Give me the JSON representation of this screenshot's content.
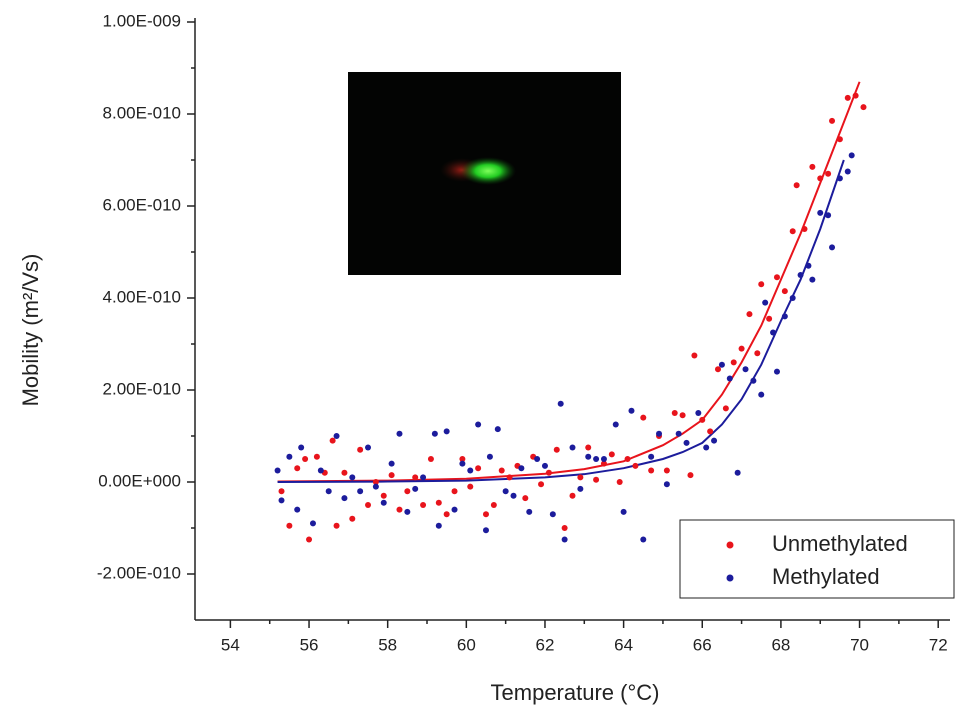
{
  "chart_data": {
    "type": "scatter",
    "xlabel": "Temperature (°C)",
    "ylabel": "Mobility (m²/Vs)",
    "xlim": [
      53.1,
      72.3
    ],
    "xticks": [
      54,
      56,
      58,
      60,
      62,
      64,
      66,
      68,
      70,
      72
    ],
    "ylim": [
      -3e-10,
      1e-09
    ],
    "yticks": [
      {
        "value": -2e-10,
        "label": "-2.00E-010"
      },
      {
        "value": 0,
        "label": "0.00E+000"
      },
      {
        "value": 2e-10,
        "label": "2.00E-010"
      },
      {
        "value": 4e-10,
        "label": "4.00E-010"
      },
      {
        "value": 6e-10,
        "label": "6.00E-010"
      },
      {
        "value": 8e-10,
        "label": "8.00E-010"
      },
      {
        "value": 1e-09,
        "label": "1.00E-009"
      }
    ],
    "legend": "lower right",
    "series": [
      {
        "name": "Unmethylated",
        "color": "#e8141c",
        "x": [
          55.3,
          55.5,
          55.7,
          55.9,
          56.0,
          56.2,
          56.4,
          56.6,
          56.7,
          56.9,
          57.1,
          57.3,
          57.5,
          57.7,
          57.9,
          58.1,
          58.3,
          58.5,
          58.7,
          58.9,
          59.1,
          59.3,
          59.5,
          59.7,
          59.9,
          60.1,
          60.3,
          60.5,
          60.7,
          60.9,
          61.1,
          61.3,
          61.5,
          61.7,
          61.9,
          62.1,
          62.3,
          62.5,
          62.7,
          62.9,
          63.1,
          63.3,
          63.5,
          63.7,
          63.9,
          64.1,
          64.3,
          64.5,
          64.7,
          64.9,
          65.1,
          65.3,
          65.5,
          65.7,
          65.8,
          66.0,
          66.2,
          66.4,
          66.6,
          66.8,
          67.0,
          67.2,
          67.4,
          67.5,
          67.7,
          67.9,
          68.1,
          68.3,
          68.4,
          68.6,
          68.8,
          69.0,
          69.2,
          69.3,
          69.5,
          69.7,
          69.9,
          70.1
        ],
        "values": [
          -2e-11,
          -9.5e-11,
          3e-11,
          5e-11,
          -1.25e-10,
          5.5e-11,
          2e-11,
          9e-11,
          -9.5e-11,
          2e-11,
          -8e-11,
          7e-11,
          -5e-11,
          0,
          -3e-11,
          1.5e-11,
          -6e-11,
          -2e-11,
          1e-11,
          -5e-11,
          5e-11,
          -4.5e-11,
          -7e-11,
          -2e-11,
          5e-11,
          -1e-11,
          3e-11,
          -7e-11,
          -5e-11,
          2.5e-11,
          1e-11,
          3.5e-11,
          -3.5e-11,
          5.5e-11,
          -5e-12,
          2e-11,
          7e-11,
          -1e-10,
          -3e-11,
          1e-11,
          7.5e-11,
          5e-12,
          4e-11,
          6e-11,
          0,
          5e-11,
          3.5e-11,
          1.4e-10,
          2.5e-11,
          1e-10,
          2.5e-11,
          1.5e-10,
          1.45e-10,
          1.5e-11,
          2.75e-10,
          1.35e-10,
          1.1e-10,
          2.45e-10,
          1.6e-10,
          2.6e-10,
          2.9e-10,
          3.65e-10,
          2.8e-10,
          4.3e-10,
          3.55e-10,
          4.45e-10,
          4.15e-10,
          5.45e-10,
          6.45e-10,
          5.5e-10,
          6.85e-10,
          6.6e-10,
          6.7e-10,
          7.85e-10,
          7.45e-10,
          8.35e-10,
          8.4e-10,
          8.15e-10
        ]
      },
      {
        "name": "Methylated",
        "color": "#1c1c9c",
        "x": [
          55.2,
          55.3,
          55.5,
          55.7,
          55.8,
          56.1,
          56.3,
          56.5,
          56.7,
          56.9,
          57.1,
          57.3,
          57.5,
          57.7,
          57.9,
          58.1,
          58.3,
          58.5,
          58.7,
          58.9,
          59.2,
          59.3,
          59.5,
          59.7,
          59.9,
          60.1,
          60.3,
          60.5,
          60.6,
          60.8,
          61.0,
          61.2,
          61.4,
          61.6,
          61.8,
          62.0,
          62.2,
          62.4,
          62.5,
          62.7,
          62.9,
          63.1,
          63.3,
          63.5,
          63.8,
          64.0,
          64.2,
          64.5,
          64.7,
          64.9,
          65.1,
          65.4,
          65.6,
          65.9,
          66.1,
          66.3,
          66.5,
          66.7,
          66.9,
          67.1,
          67.3,
          67.5,
          67.6,
          67.8,
          67.9,
          68.1,
          68.3,
          68.5,
          68.7,
          68.8,
          69.0,
          69.2,
          69.3,
          69.5,
          69.7,
          69.8
        ],
        "values": [
          2.5e-11,
          -4e-11,
          5.5e-11,
          -6e-11,
          7.5e-11,
          -9e-11,
          2.5e-11,
          -2e-11,
          1e-10,
          -3.5e-11,
          1e-11,
          -2e-11,
          7.5e-11,
          -1e-11,
          -4.5e-11,
          4e-11,
          1.05e-10,
          -6.5e-11,
          -1.5e-11,
          1e-11,
          1.05e-10,
          -9.5e-11,
          1.1e-10,
          -6e-11,
          4e-11,
          2.5e-11,
          1.25e-10,
          -1.05e-10,
          5.5e-11,
          1.15e-10,
          -2e-11,
          -3e-11,
          3e-11,
          -6.5e-11,
          5e-11,
          3.5e-11,
          -7e-11,
          1.7e-10,
          -1.25e-10,
          7.5e-11,
          -1.5e-11,
          5.5e-11,
          5e-11,
          5e-11,
          1.25e-10,
          -6.5e-11,
          1.55e-10,
          -1.25e-10,
          5.5e-11,
          1.05e-10,
          -5e-12,
          1.05e-10,
          8.5e-11,
          1.5e-10,
          7.5e-11,
          9e-11,
          2.55e-10,
          2.25e-10,
          2e-11,
          2.45e-10,
          2.2e-10,
          1.9e-10,
          3.9e-10,
          3.25e-10,
          2.4e-10,
          3.6e-10,
          4e-10,
          4.5e-10,
          4.7e-10,
          4.4e-10,
          5.85e-10,
          5.8e-10,
          5.1e-10,
          6.6e-10,
          6.75e-10,
          7.1e-10
        ]
      }
    ],
    "fits": [
      {
        "color": "#e8141c",
        "x": [
          55.2,
          58,
          60,
          62,
          63,
          64,
          65,
          65.5,
          66,
          66.5,
          67,
          67.5,
          68,
          68.5,
          69,
          69.5,
          70
        ],
        "values": [
          1e-12,
          3e-12,
          7e-12,
          1.8e-11,
          2.8e-11,
          4.5e-11,
          8e-11,
          1.05e-10,
          1.35e-10,
          1.9e-10,
          2.6e-10,
          3.4e-10,
          4.4e-10,
          5.4e-10,
          6.5e-10,
          7.6e-10,
          8.7e-10
        ]
      },
      {
        "color": "#1c1c9c",
        "x": [
          55.2,
          58,
          60,
          62,
          63,
          64,
          65,
          65.5,
          66,
          66.5,
          67,
          67.5,
          68,
          68.5,
          69,
          69.6
        ],
        "values": [
          0,
          1e-12,
          3e-12,
          1e-11,
          1.7e-11,
          3e-11,
          5e-11,
          6.5e-11,
          8.5e-11,
          1.25e-10,
          1.8e-10,
          2.55e-10,
          3.5e-10,
          4.4e-10,
          5.5e-10,
          7e-10
        ]
      }
    ]
  }
}
